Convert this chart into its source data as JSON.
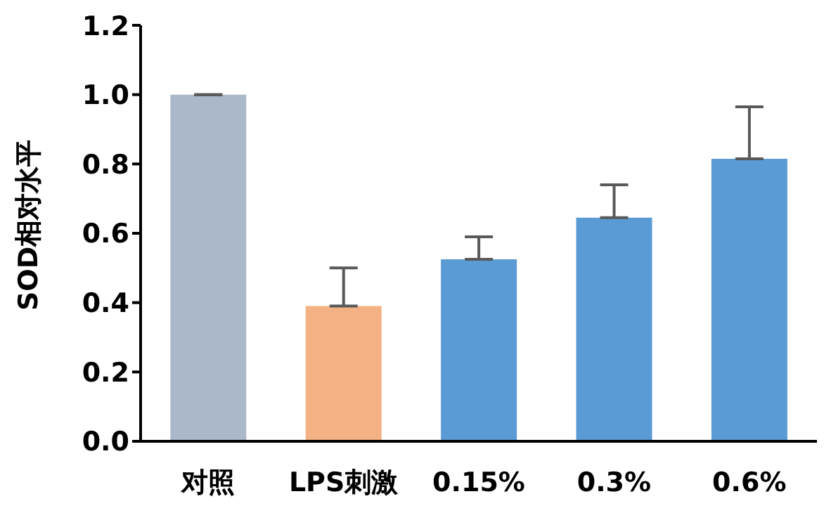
{
  "chart_data": {
    "type": "bar",
    "ylabel": "SOD相对水平",
    "categories": [
      "对照",
      "LPS刺激",
      "0.15%",
      "0.3%",
      "0.6%"
    ],
    "values": [
      1.0,
      0.39,
      0.525,
      0.645,
      0.815
    ],
    "errors": [
      [
        1.0,
        1.0
      ],
      [
        0.39,
        0.5
      ],
      [
        0.525,
        0.59
      ],
      [
        0.645,
        0.74
      ],
      [
        0.815,
        0.965
      ]
    ],
    "colors": [
      "#abb8ca",
      "#f4b183",
      "#5b9bd5",
      "#5b9bd5",
      "#5b9bd5"
    ],
    "ylim": [
      0,
      1.2
    ],
    "yticks": [
      {
        "value": 0,
        "label": "0.0"
      },
      {
        "value": 0.2,
        "label": "0.2"
      },
      {
        "value": 0.4,
        "label": "0.4"
      },
      {
        "value": 0.6,
        "label": "0.6"
      },
      {
        "value": 0.8,
        "label": "0.8"
      },
      {
        "value": 1.0,
        "label": "1.0"
      },
      {
        "value": 1.2,
        "label": "1.2"
      }
    ],
    "grid": false,
    "legend": false
  }
}
